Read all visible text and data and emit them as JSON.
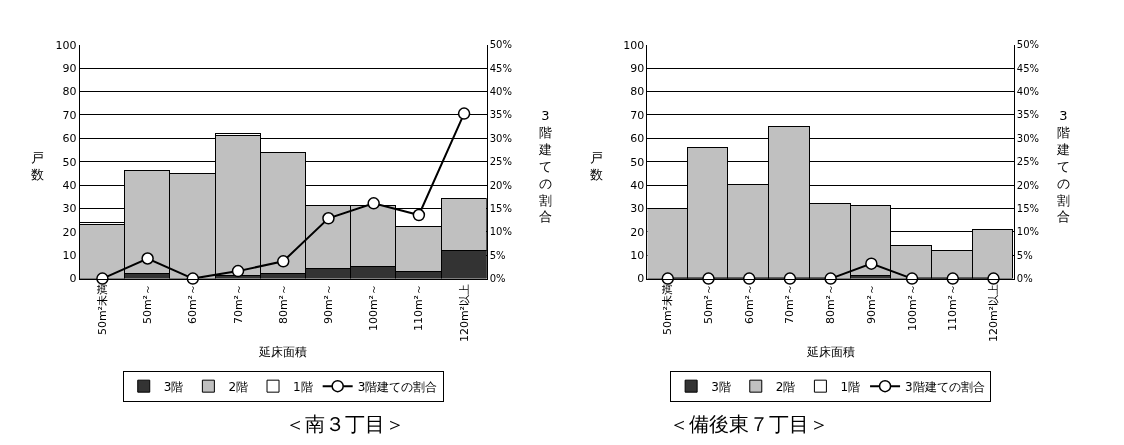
{
  "chart_data": [
    {
      "type": "bar",
      "title": "＜南３丁目＞",
      "xlabel": "延床面積",
      "ylabel": "戸数",
      "y2label": "3階建ての割合",
      "stacked": true,
      "grid": "y",
      "legend": "bottom",
      "marker": "circle",
      "line_style": "solid",
      "categories": [
        "50m²未満",
        "50m²～",
        "60m²～",
        "70m²～",
        "80m²～",
        "90m²～",
        "100m²～",
        "110m²～",
        "120m²以上"
      ],
      "ylim": [
        0,
        100
      ],
      "yticks": [
        0,
        10,
        20,
        30,
        40,
        50,
        60,
        70,
        80,
        90,
        100
      ],
      "y2lim": [
        0,
        50
      ],
      "y2ticks": [
        {
          "value": 0,
          "label": "0%"
        },
        {
          "value": 5,
          "label": "5%"
        },
        {
          "value": 10,
          "label": "10%"
        },
        {
          "value": 15,
          "label": "15%"
        },
        {
          "value": 20,
          "label": "20%"
        },
        {
          "value": 25,
          "label": "25%"
        },
        {
          "value": 30,
          "label": "30%"
        },
        {
          "value": 35,
          "label": "35%"
        },
        {
          "value": 40,
          "label": "40%"
        },
        {
          "value": 45,
          "label": "45%"
        },
        {
          "value": 50,
          "label": "50%"
        }
      ],
      "series": [
        {
          "name": "3階",
          "color": "#333333",
          "values": [
            0,
            2,
            0,
            1,
            2,
            4,
            5,
            3,
            12
          ]
        },
        {
          "name": "2階",
          "color": "#c0c0c0",
          "values": [
            23,
            44,
            45,
            60,
            52,
            27,
            26,
            19,
            22
          ]
        },
        {
          "name": "1階",
          "color": "#ffffff",
          "values": [
            1,
            0,
            0,
            1,
            0,
            0,
            0,
            0,
            0
          ]
        },
        {
          "name": "3階建ての割合",
          "type": "line",
          "axis": "y2",
          "color": "#000000",
          "values": [
            0,
            4.3,
            0,
            1.6,
            3.7,
            12.9,
            16.1,
            13.6,
            35.3
          ]
        }
      ]
    },
    {
      "type": "bar",
      "title": "＜備後東７丁目＞",
      "xlabel": "延床面積",
      "ylabel": "戸数",
      "y2label": "3階建ての割合",
      "stacked": true,
      "grid": "y",
      "legend": "bottom",
      "marker": "circle",
      "line_style": "solid",
      "categories": [
        "50m²未満",
        "50m²～",
        "60m²～",
        "70m²～",
        "80m²～",
        "90m²～",
        "100m²～",
        "110m²～",
        "120m²以上"
      ],
      "ylim": [
        0,
        100
      ],
      "yticks": [
        0,
        10,
        20,
        30,
        40,
        50,
        60,
        70,
        80,
        90,
        100
      ],
      "y2lim": [
        0,
        50
      ],
      "y2ticks": [
        {
          "value": 0,
          "label": "0%"
        },
        {
          "value": 5,
          "label": "5%"
        },
        {
          "value": 10,
          "label": "10%"
        },
        {
          "value": 15,
          "label": "15%"
        },
        {
          "value": 20,
          "label": "20%"
        },
        {
          "value": 25,
          "label": "25%"
        },
        {
          "value": 30,
          "label": "30%"
        },
        {
          "value": 35,
          "label": "35%"
        },
        {
          "value": 40,
          "label": "40%"
        },
        {
          "value": 45,
          "label": "45%"
        },
        {
          "value": 50,
          "label": "50%"
        }
      ],
      "series": [
        {
          "name": "3階",
          "color": "#333333",
          "values": [
            0,
            0,
            0,
            0,
            0,
            1,
            0,
            0,
            0
          ]
        },
        {
          "name": "2階",
          "color": "#c0c0c0",
          "values": [
            30,
            56,
            40,
            65,
            32,
            30,
            14,
            12,
            21
          ]
        },
        {
          "name": "1階",
          "color": "#ffffff",
          "values": [
            0,
            0,
            0,
            0,
            0,
            0,
            0,
            0,
            0
          ]
        },
        {
          "name": "3階建ての割合",
          "type": "line",
          "axis": "y2",
          "color": "#000000",
          "values": [
            0,
            0,
            0,
            0,
            0,
            3.2,
            0,
            0,
            0
          ]
        }
      ]
    }
  ]
}
